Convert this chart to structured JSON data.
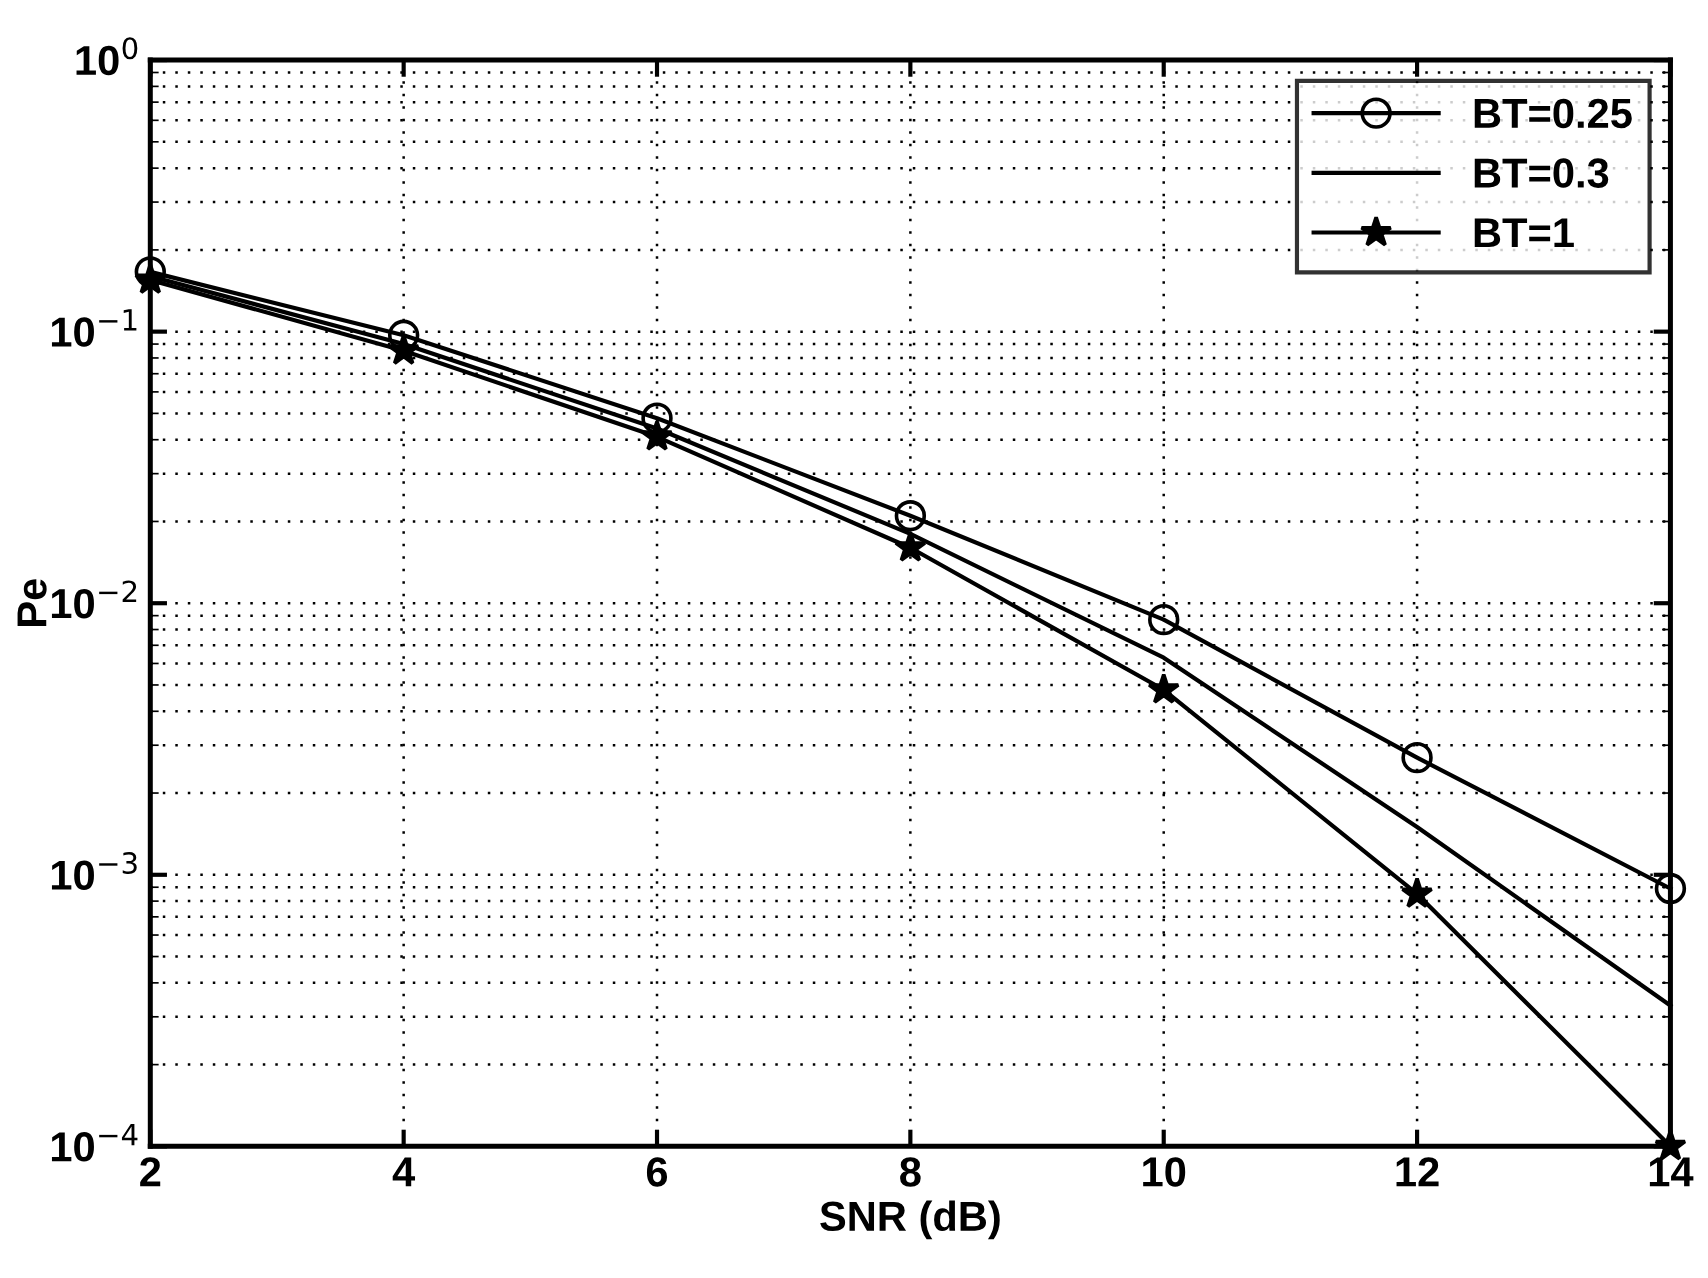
{
  "chart_data": {
    "type": "line",
    "xlabel": "SNR (dB)",
    "ylabel": "Pe",
    "x": [
      2,
      4,
      6,
      8,
      10,
      12,
      14
    ],
    "series": [
      {
        "name": "BT=0.25",
        "color": "#000000",
        "marker": "circle",
        "values": [
          0.166,
          0.097,
          0.048,
          0.021,
          0.0087,
          0.0027,
          0.00089
        ]
      },
      {
        "name": "BT=0.3",
        "color": "#000000",
        "marker": "none",
        "values": [
          0.16,
          0.09,
          0.044,
          0.018,
          0.0063,
          0.0015,
          0.00033
        ]
      },
      {
        "name": "BT=1",
        "color": "#000000",
        "marker": "star",
        "values": [
          0.155,
          0.085,
          0.041,
          0.016,
          0.0048,
          0.00085,
          0.0001
        ]
      }
    ],
    "log": "y",
    "xlim": [
      2,
      14
    ],
    "ylim": [
      0.0001,
      1
    ],
    "xticks": [
      2,
      4,
      6,
      8,
      10,
      12,
      14
    ],
    "yticks": [
      {
        "value": 0.0001,
        "label": "10$^{−4}$"
      },
      {
        "value": 0.001,
        "label": "10$^{−3}$"
      },
      {
        "value": 0.01,
        "label": "10$^{−2}$"
      },
      {
        "value": 0.1,
        "label": "10$^{−1}$"
      },
      {
        "value": 1,
        "label": "10$^{0}$"
      }
    ],
    "grid": true,
    "legend": "top right",
    "line_style": "solid"
  }
}
